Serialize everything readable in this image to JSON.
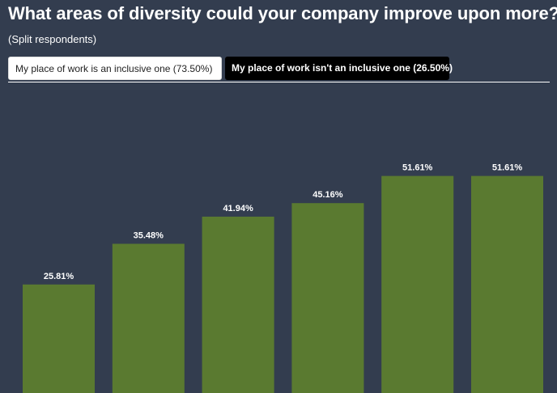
{
  "title": "What areas of diversity could your company improve upon more?",
  "subtitle": "(Split respondents)",
  "tabs": [
    {
      "label": "My place of work is an inclusive one (73.50%)",
      "active": false
    },
    {
      "label": "My place of work isn't an inclusive one (26.50%)",
      "active": true
    }
  ],
  "colors": {
    "background": "#333d4f",
    "bar": "#5a7a30",
    "text": "#ffffff",
    "active_tab_bg": "#000000",
    "inactive_tab_bg": "#ffffff"
  },
  "chart_data": {
    "type": "bar",
    "title": "What areas of diversity could your company improve upon more?",
    "subtitle": "(Split respondents)",
    "categories": [],
    "values": [
      25.81,
      35.48,
      41.94,
      45.16,
      51.61,
      51.61
    ],
    "labels": [
      "25.81%",
      "35.48%",
      "41.94%",
      "45.16%",
      "51.61%",
      "51.61%"
    ],
    "unit": "%",
    "grid": false,
    "legend": "none"
  }
}
